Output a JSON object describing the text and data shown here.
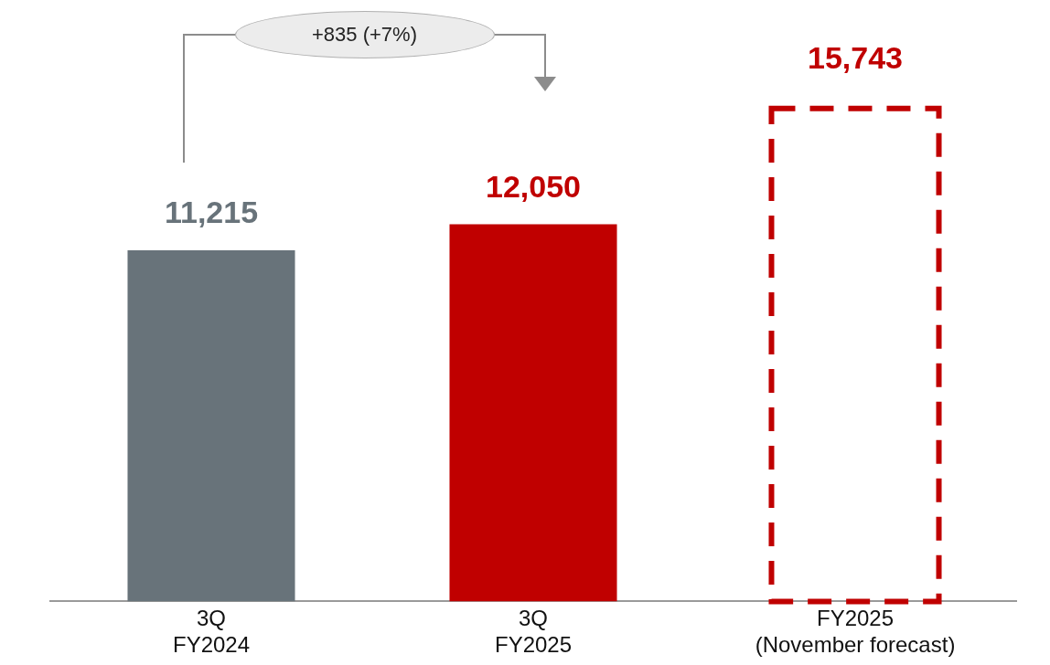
{
  "chart_data": {
    "type": "bar",
    "stacked": true,
    "categories": [
      "3Q\nFY2024",
      "3Q\nFY2025",
      "FY2025\n(November forecast)"
    ],
    "series": [
      {
        "type": "bar",
        "values": [
          11215,
          12050,
          null
        ],
        "colors": [
          "#68737a",
          "#c00000",
          "#c00000"
        ],
        "value_labels": [
          "11,215",
          "12,050",
          null
        ]
      },
      {
        "type": "bar",
        "values": [
          null,
          null,
          15743
        ],
        "color": "#c00000",
        "line_style": "dashed",
        "value_labels": [
          null,
          null,
          "15,743"
        ]
      }
    ],
    "tick_labels": "x",
    "grid": false,
    "legend": false,
    "annotations": [
      "+835 (+7%)"
    ]
  }
}
